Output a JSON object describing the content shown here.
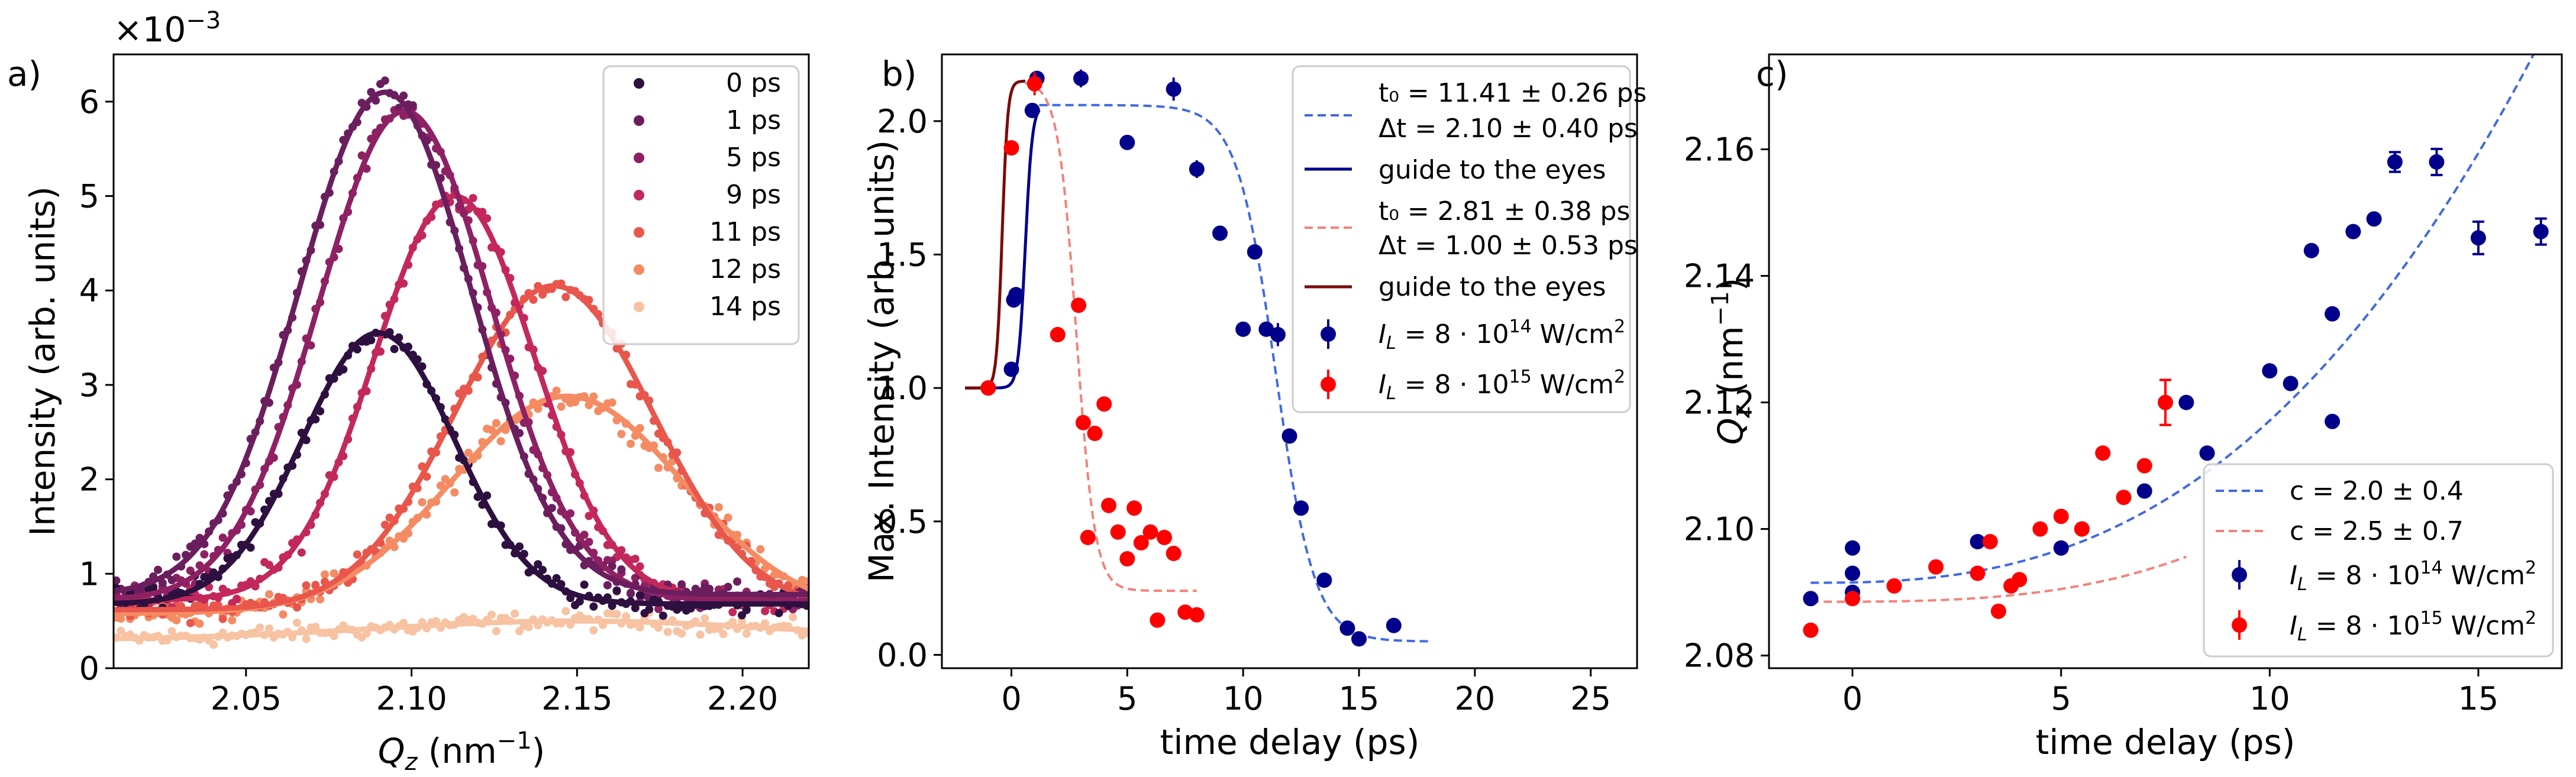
{
  "chart_data": [
    {
      "panel_label": "a)",
      "type": "scatter",
      "xlabel": "Q",
      "xlabel_sub": "z",
      "xlabel_unit": "(nm",
      "xlabel_sup": "−1",
      "xlabel_close": ")",
      "ylabel": "Intensity (arb. units)",
      "scale_label": "×10",
      "scale_exp": "−3",
      "xlim": [
        2.01,
        2.22
      ],
      "ylim": [
        0,
        6.5
      ],
      "xticks": [
        "2.05",
        "2.10",
        "2.15",
        "2.20"
      ],
      "xtick_values": [
        2.05,
        2.1,
        2.15,
        2.2
      ],
      "yticks": [
        "0",
        "1",
        "2",
        "3",
        "4",
        "5",
        "6"
      ],
      "ytick_values": [
        0,
        1,
        2,
        3,
        4,
        5,
        6
      ],
      "legend_position": "top-right",
      "series": [
        {
          "name": "0 ps",
          "color": "#2d1040",
          "peak_x": 2.09,
          "peak_y": 3.55,
          "sigma": 0.023,
          "base": 0.68
        },
        {
          "name": "1 ps",
          "color": "#6b1e5e",
          "peak_x": 2.092,
          "peak_y": 6.1,
          "sigma": 0.026,
          "base": 0.78
        },
        {
          "name": "5 ps",
          "color": "#8e2163",
          "peak_x": 2.098,
          "peak_y": 5.9,
          "sigma": 0.026,
          "base": 0.72
        },
        {
          "name": "9 ps",
          "color": "#c3285c",
          "peak_x": 2.113,
          "peak_y": 5.0,
          "sigma": 0.024,
          "base": 0.72
        },
        {
          "name": "11 ps",
          "color": "#e8564c",
          "peak_x": 2.143,
          "peak_y": 4.05,
          "sigma": 0.03,
          "base": 0.62
        },
        {
          "name": "12 ps",
          "color": "#f58b62",
          "peak_x": 2.147,
          "peak_y": 2.88,
          "sigma": 0.035,
          "base": 0.58
        },
        {
          "name": "14 ps",
          "color": "#f7c3a3",
          "peak_x": 2.15,
          "peak_y": 0.5,
          "sigma": 0.06,
          "base": 0.3
        }
      ]
    },
    {
      "panel_label": "b)",
      "type": "scatter",
      "xlabel": "time delay (ps)",
      "ylabel": "Max. Intensity (arb. units)",
      "xlim": [
        -3,
        27
      ],
      "ylim": [
        -0.05,
        2.25
      ],
      "xticks": [
        "0",
        "5",
        "10",
        "15",
        "20",
        "25"
      ],
      "xtick_values": [
        0,
        5,
        10,
        15,
        20,
        25
      ],
      "yticks": [
        "0.0",
        "0.5",
        "1.0",
        "1.5",
        "2.0"
      ],
      "ytick_values": [
        0.0,
        0.5,
        1.0,
        1.5,
        2.0
      ],
      "legend_position": "top-right",
      "series": [
        {
          "name": "I_L = 8·10^14 W/cm^2",
          "color": "#00008b",
          "x": [
            -1,
            0.0,
            0.1,
            0.2,
            0.9,
            1.1,
            3,
            5,
            7,
            8,
            9,
            10,
            10.5,
            11,
            11.5,
            12,
            12.5,
            13.5,
            14.5,
            15,
            16.5
          ],
          "y": [
            1.0,
            1.07,
            1.33,
            1.35,
            2.04,
            2.16,
            2.16,
            1.92,
            2.12,
            1.82,
            1.58,
            1.22,
            1.51,
            1.22,
            1.2,
            0.82,
            0.55,
            0.28,
            0.1,
            0.06,
            0.11
          ],
          "err": [
            0,
            0,
            0,
            0,
            0,
            0,
            0.02,
            0,
            0.03,
            0.02,
            0,
            0,
            0,
            0,
            0.03,
            0,
            0,
            0,
            0,
            0,
            0
          ]
        },
        {
          "name": "I_L = 8·10^15 W/cm^2",
          "color": "#ff0000",
          "x": [
            -1,
            0,
            1,
            2,
            2.9,
            3.1,
            3.3,
            3.6,
            4,
            4.2,
            4.6,
            5,
            5.3,
            5.6,
            6,
            6.3,
            6.6,
            7,
            7.5,
            8
          ],
          "y": [
            1.0,
            1.9,
            2.14,
            1.2,
            1.31,
            0.87,
            0.44,
            0.83,
            0.94,
            0.56,
            0.46,
            0.36,
            0.55,
            0.42,
            0.46,
            0.13,
            0.44,
            0.38,
            0.16,
            0.15
          ],
          "err": [
            0,
            0,
            0.03,
            0,
            0,
            0,
            0,
            0,
            0,
            0,
            0,
            0,
            0,
            0,
            0,
            0,
            0,
            0,
            0,
            0
          ]
        }
      ],
      "fits": [
        {
          "label_line1": "t₀ = 11.41 ±  0.26 ps",
          "label_line2": "Δt =  2.10 ±  0.40 ps",
          "color": "#4169e1",
          "style": "dashed",
          "t0": 11.41,
          "dt": 2.1,
          "high": 2.06,
          "low": 0.05,
          "xmin": 1.2,
          "xmax": 18
        },
        {
          "label_line1": "guide to the eyes",
          "color": "#00008b",
          "style": "solid",
          "center": 0.6,
          "width": 0.15,
          "high": 2.06,
          "low": 1.0,
          "xmin": -2,
          "xmax": 1.2
        },
        {
          "label_line1": "t₀ =  2.81 ±  0.38 ps",
          "label_line2": "Δt =  1.00 ±  0.53 ps",
          "color": "#f4817a",
          "style": "dashed",
          "t0": 2.81,
          "dt": 1.0,
          "high": 2.15,
          "low": 0.24,
          "xmin": 0.6,
          "xmax": 8
        },
        {
          "label_line1": "guide to the eyes",
          "color": "#7b0a0a",
          "style": "solid",
          "center": -0.4,
          "width": 0.12,
          "high": 2.15,
          "low": 1.0,
          "xmin": -2,
          "xmax": 0.6
        }
      ]
    },
    {
      "panel_label": "c)",
      "type": "scatter",
      "xlabel": "time delay (ps)",
      "ylabel": "Q",
      "ylabel_sub": "z",
      "ylabel_unit": "(nm",
      "ylabel_sup": "−1",
      "ylabel_close": ")",
      "xlim": [
        -2,
        17
      ],
      "ylim": [
        2.078,
        2.175
      ],
      "xticks": [
        "0",
        "5",
        "10",
        "15"
      ],
      "xtick_values": [
        0,
        5,
        10,
        15
      ],
      "yticks": [
        "2.08",
        "2.10",
        "2.12",
        "2.14",
        "2.16"
      ],
      "ytick_values": [
        2.08,
        2.1,
        2.12,
        2.14,
        2.16
      ],
      "legend_position": "bottom-right",
      "series": [
        {
          "name": "I_L = 8·10^14 W/cm^2",
          "color": "#00008b",
          "x": [
            -1,
            0,
            0,
            0,
            3,
            5,
            5.5,
            7,
            8,
            8.5,
            10,
            10.5,
            11,
            11.5,
            11.5,
            12,
            12.5,
            13,
            14,
            15,
            16.5
          ],
          "y": [
            2.089,
            2.093,
            2.097,
            2.09,
            2.098,
            2.097,
            2.1,
            2.106,
            2.12,
            2.112,
            2.125,
            2.123,
            2.144,
            2.134,
            2.117,
            2.147,
            2.149,
            2.158,
            2.158,
            2.146,
            2.147
          ],
          "err": [
            0,
            0,
            0,
            0,
            0,
            0,
            0,
            0,
            0,
            0,
            0,
            0,
            0,
            0,
            0,
            0,
            0,
            0.001,
            0.0015,
            0.002,
            0.0015
          ]
        },
        {
          "name": "I_L = 8·10^15 W/cm^2",
          "color": "#ff0000",
          "x": [
            -1,
            0,
            1,
            2,
            3,
            3.3,
            3.5,
            3.8,
            4,
            4.5,
            5,
            5.5,
            6,
            6.5,
            7,
            7.5
          ],
          "y": [
            2.084,
            2.089,
            2.091,
            2.094,
            2.093,
            2.098,
            2.087,
            2.091,
            2.092,
            2.1,
            2.102,
            2.1,
            2.112,
            2.105,
            2.11,
            2.12
          ],
          "err": [
            0,
            0,
            0,
            0,
            0,
            0,
            0,
            0,
            0,
            0,
            0,
            0,
            0,
            0,
            0,
            0.003
          ]
        }
      ],
      "fits": [
        {
          "label": "c =   2.0 ±   0.4",
          "color": "#4169e1",
          "style": "dashed",
          "a": 2.0915,
          "k": 0.0033,
          "c": 2.0,
          "xmin": -1,
          "xmax": 16.5
        },
        {
          "label": "c =   2.5 ±   0.7",
          "color": "#f4817a",
          "style": "dashed",
          "a": 2.0885,
          "k": 0.00115,
          "c": 2.5,
          "xmin": -1,
          "xmax": 8
        }
      ]
    }
  ]
}
